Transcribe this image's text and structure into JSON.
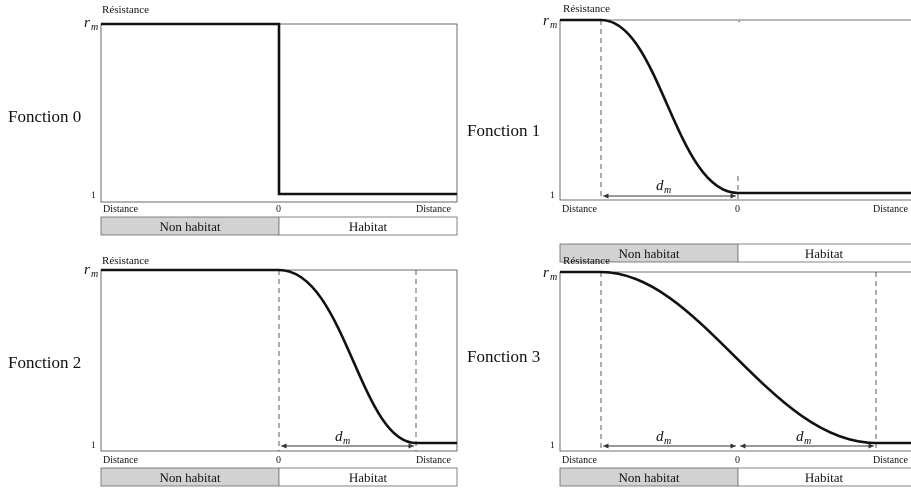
{
  "panels": [
    {
      "label": "Fonction 0",
      "resistance_label": "Résistance",
      "rm_label": "r",
      "rm_sub": "m",
      "one_label": "1",
      "left_distance": "Distance",
      "zero_label": "0",
      "right_distance": "Distance",
      "band_non_habitat": "Non habitat",
      "band_habitat": "Habitat"
    },
    {
      "label": "Fonction 1",
      "resistance_label": "Résistance",
      "rm_label": "r",
      "rm_sub": "m",
      "one_label": "1",
      "left_distance": "Distance",
      "zero_label": "0",
      "right_distance": "Distance",
      "band_non_habitat": "Non habitat",
      "band_habitat": "Habitat",
      "dm_label": "d",
      "dm_sub": "m"
    },
    {
      "label": "Fonction 2",
      "resistance_label": "Résistance",
      "rm_label": "r",
      "rm_sub": "m",
      "one_label": "1",
      "left_distance": "Distance",
      "zero_label": "0",
      "right_distance": "Distance",
      "band_non_habitat": "Non habitat",
      "band_habitat": "Habitat",
      "dm_label": "d",
      "dm_sub": "m"
    },
    {
      "label": "Fonction 3",
      "resistance_label": "Résistance",
      "rm_label": "r",
      "rm_sub": "m",
      "one_label": "1",
      "left_distance": "Distance",
      "zero_label": "0",
      "right_distance": "Distance",
      "band_non_habitat": "Non habitat",
      "band_habitat": "Habitat",
      "dm_label": "d",
      "dm_sub": "m",
      "dm2_label": "d",
      "dm2_sub": "m"
    }
  ],
  "stray_mark": "."
}
